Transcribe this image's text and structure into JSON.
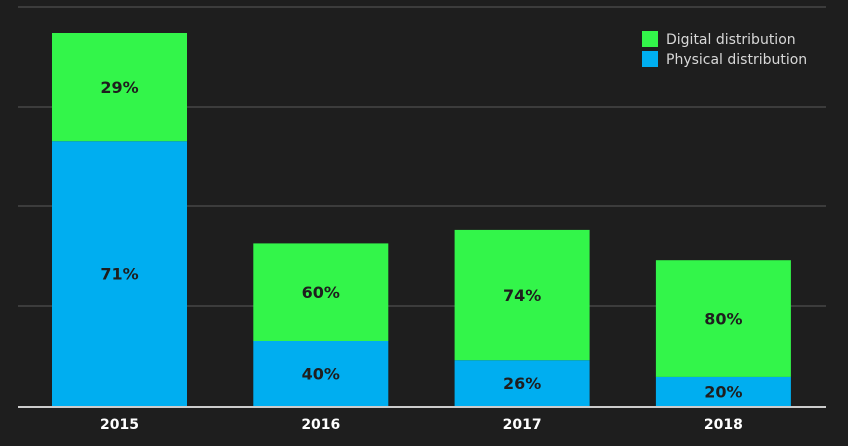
{
  "chart_data": {
    "type": "bar",
    "stacked": true,
    "title": "",
    "xlabel": "",
    "ylabel": "",
    "categories": [
      "2015",
      "2016",
      "2017",
      "2018"
    ],
    "totals_relative": [
      100,
      43.6,
      47.2,
      39.1
    ],
    "series": [
      {
        "name": "Physical distribution",
        "color": "#00aef0",
        "values": [
          71,
          40,
          26,
          20
        ],
        "labels": [
          "71%",
          "40%",
          "26%",
          "20%"
        ]
      },
      {
        "name": "Digital distribution",
        "color": "#33f54a",
        "values": [
          29,
          60,
          74,
          80
        ],
        "labels": [
          "29%",
          "60%",
          "74%",
          "80%"
        ]
      }
    ],
    "legend": {
      "position": "top-right",
      "entries": [
        {
          "label": "Digital distribution",
          "color": "#33f54a"
        },
        {
          "label": "Physical distribution",
          "color": "#00aef0"
        }
      ]
    },
    "grid": true,
    "ylim": [
      0,
      100
    ],
    "yticks": [
      0,
      26.5,
      53.1,
      79.6,
      106.2
    ],
    "colors": {
      "background": "#1e1e1e",
      "gridline": "#5a5a5a",
      "axis": "#cccccc"
    }
  }
}
